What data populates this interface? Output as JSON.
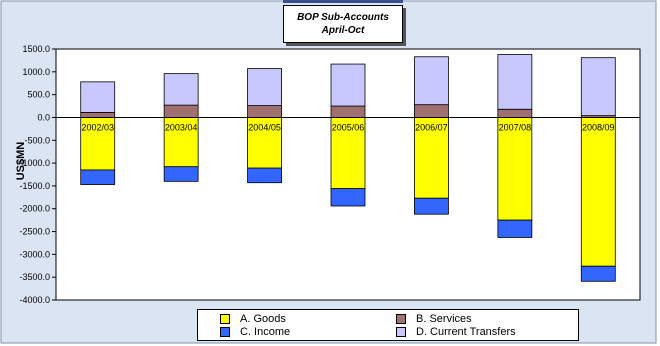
{
  "chart_data": {
    "type": "bar",
    "stacked": true,
    "title": "BOP Sub-Accounts",
    "subtitle": "April-Oct",
    "ylabel": "US$MN",
    "xlabel": "",
    "ylim": [
      -4000,
      1500
    ],
    "ytick_step": 500,
    "yticks": [
      "1500.0",
      "1000.0",
      "500.0",
      "0.0",
      "-500.0",
      "-1000.0",
      "-1500.0",
      "-2000.0",
      "-2500.0",
      "-3000.0",
      "-3500.0",
      "-4000.0"
    ],
    "categories": [
      "2002/03",
      "2003/04",
      "2004/05",
      "2005/06",
      "2006/07",
      "2007/08",
      "2008/09"
    ],
    "legend_position": "bottom",
    "grid": false,
    "series": [
      {
        "name": "A. Goods",
        "color": "#ffff00",
        "values": [
          -1150,
          -1080,
          -1110,
          -1560,
          -1770,
          -2250,
          -3260
        ]
      },
      {
        "name": "B. Services",
        "color": "#a07070",
        "values": [
          110,
          270,
          260,
          250,
          280,
          180,
          40
        ]
      },
      {
        "name": "C. Income",
        "color": "#3366ff",
        "values": [
          -320,
          -320,
          -320,
          -380,
          -350,
          -380,
          -330
        ]
      },
      {
        "name": "D. Current Transfers",
        "color": "#c8c8ff",
        "values": [
          670,
          690,
          810,
          920,
          1050,
          1200,
          1270
        ]
      }
    ]
  },
  "colors": {
    "frame_background": "#dbe4f3",
    "plot_background": "#ffffff",
    "bar_outline": "#000000"
  }
}
